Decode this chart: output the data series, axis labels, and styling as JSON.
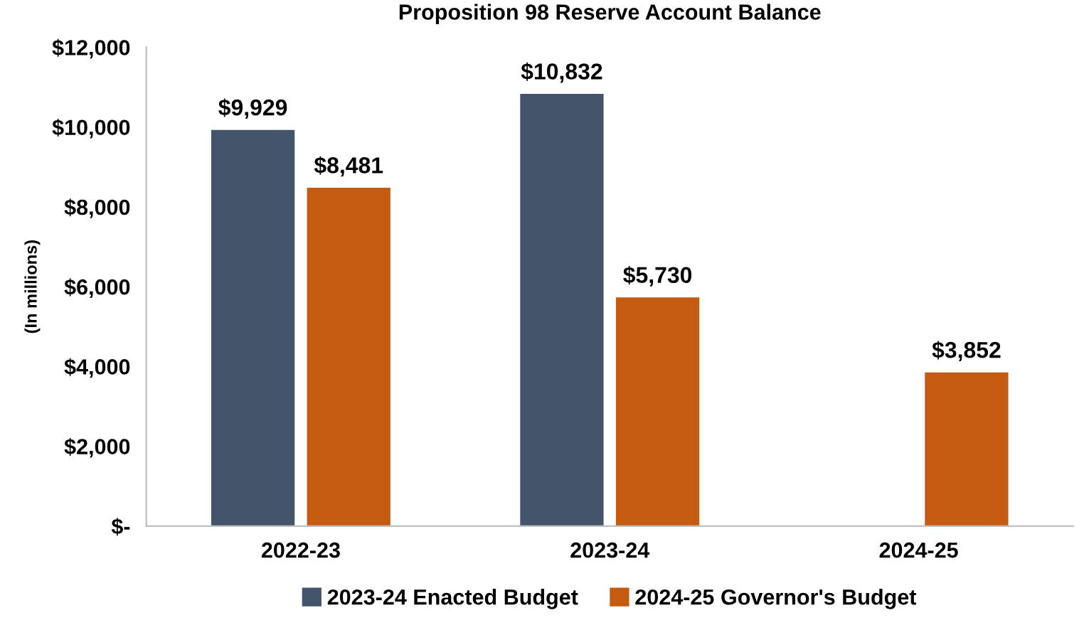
{
  "chart_data": {
    "type": "bar",
    "title": "Proposition 98 Reserve Account Balance",
    "ylabel": "(In millions)",
    "categories": [
      "2022-23",
      "2023-24",
      "2024-25"
    ],
    "series": [
      {
        "name": "2023-24 Enacted Budget",
        "color": "#44546a",
        "values": [
          9929,
          10832,
          null
        ],
        "value_labels": [
          "$9,929",
          "$10,832",
          null
        ]
      },
      {
        "name": "2024-25 Governor's Budget",
        "color": "#c55a11",
        "values": [
          8481,
          5730,
          3852
        ],
        "value_labels": [
          "$8,481",
          "$5,730",
          "$3,852"
        ]
      }
    ],
    "ylim": [
      0,
      12000
    ],
    "yticks": [
      {
        "value": 0,
        "label": "$-"
      },
      {
        "value": 2000,
        "label": "$2,000"
      },
      {
        "value": 4000,
        "label": "$4,000"
      },
      {
        "value": 6000,
        "label": "$6,000"
      },
      {
        "value": 8000,
        "label": "$8,000"
      },
      {
        "value": 10000,
        "label": "$10,000"
      },
      {
        "value": 12000,
        "label": "$12,000"
      }
    ],
    "grid": false,
    "legend": "bottom"
  }
}
